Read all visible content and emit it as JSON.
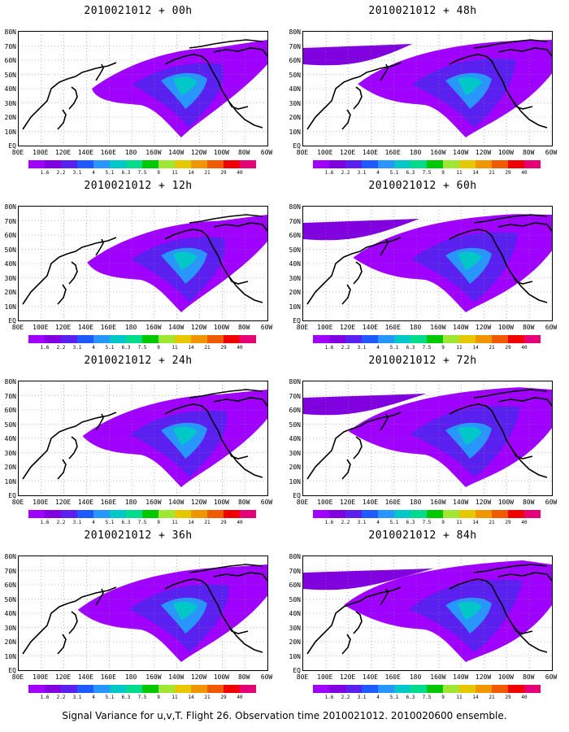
{
  "panels": [
    {
      "title": "2010021012 + 00h"
    },
    {
      "title": "2010021012 + 12h"
    },
    {
      "title": "2010021012 + 24h"
    },
    {
      "title": "2010021012 + 36h"
    },
    {
      "title": "2010021012 + 48h"
    },
    {
      "title": "2010021012 + 60h"
    },
    {
      "title": "2010021012 + 72h"
    },
    {
      "title": "2010021012 + 84h"
    }
  ],
  "map": {
    "lat_labels": [
      "80N",
      "70N",
      "60N",
      "50N",
      "40N",
      "30N",
      "20N",
      "10N",
      "EQ"
    ],
    "lon_labels": [
      "80E",
      "100E",
      "120E",
      "140E",
      "160E",
      "180",
      "160W",
      "140W",
      "120W",
      "100W",
      "80W",
      "60W"
    ]
  },
  "colorbar": {
    "levels": [
      "1.6",
      "2.2",
      "3.1",
      "4",
      "5.1",
      "6.3",
      "7.5",
      "9",
      "11",
      "14",
      "21",
      "29",
      "40"
    ],
    "colors": [
      "#9f00ff",
      "#8000e0",
      "#5a20f0",
      "#1e5aff",
      "#2896ff",
      "#00c8c8",
      "#00dc8c",
      "#00c800",
      "#a0e632",
      "#e6c800",
      "#f09600",
      "#f05a00",
      "#f00000",
      "#e60078"
    ]
  },
  "footer": "Signal Variance for u,v,T. Flight 26. Observation time 2010021012. 2010020600 ensemble."
}
